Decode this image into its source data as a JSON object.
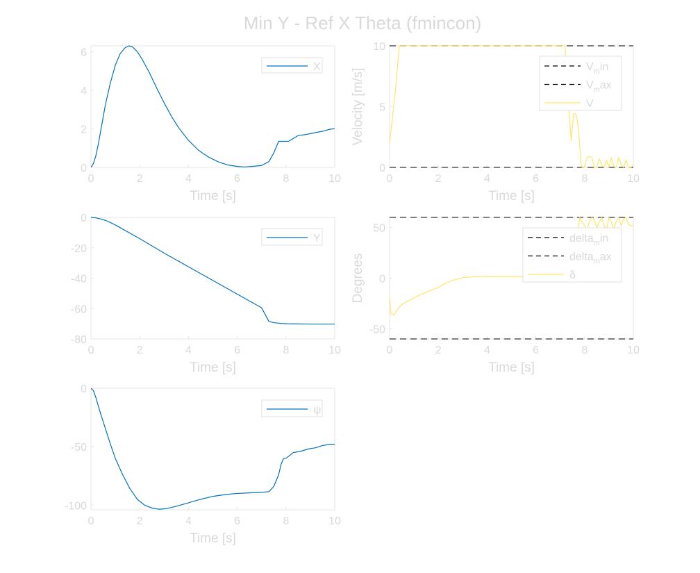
{
  "figure": {
    "title": "Min Y - Ref X Theta (fmincon)"
  },
  "colors": {
    "blue": "#0072BD",
    "yellow": "#FFE766",
    "limit": "#555555"
  },
  "chart_data": [
    {
      "id": "x",
      "type": "line",
      "xlabel": "Time [s]",
      "ylabel": "",
      "xlim": [
        0,
        10
      ],
      "ylim": [
        0,
        6.3
      ],
      "xticks": [
        "0",
        "2",
        "4",
        "6",
        "8",
        "10"
      ],
      "yticks": [
        "0",
        "2",
        "4",
        "6"
      ],
      "legend": [
        "X"
      ],
      "series": [
        {
          "name": "X",
          "color": "#0072BD",
          "x": [
            0,
            0.1,
            0.2,
            0.3,
            0.4,
            0.5,
            0.6,
            0.8,
            1.0,
            1.2,
            1.4,
            1.55,
            1.7,
            1.9,
            2.1,
            2.4,
            2.7,
            3.0,
            3.3,
            3.6,
            4.0,
            4.4,
            4.8,
            5.2,
            5.6,
            6.0,
            6.3,
            6.6,
            7.0,
            7.3,
            7.5,
            7.7,
            7.9,
            8.1,
            8.3,
            8.5,
            8.8,
            9.0,
            9.2,
            9.4,
            9.6,
            9.8,
            10.0
          ],
          "y": [
            0,
            0.2,
            0.6,
            1.2,
            1.9,
            2.6,
            3.3,
            4.4,
            5.3,
            5.9,
            6.2,
            6.3,
            6.25,
            6.0,
            5.6,
            4.9,
            4.1,
            3.35,
            2.65,
            2.05,
            1.4,
            0.9,
            0.55,
            0.3,
            0.13,
            0.05,
            0.02,
            0.05,
            0.1,
            0.3,
            0.75,
            1.35,
            1.35,
            1.35,
            1.5,
            1.65,
            1.7,
            1.75,
            1.8,
            1.85,
            1.9,
            1.98,
            2.0
          ]
        }
      ]
    },
    {
      "id": "velocity",
      "type": "line",
      "xlabel": "Time [s]",
      "ylabel": "Velocity [m/s]",
      "xlim": [
        0,
        10
      ],
      "ylim": [
        0,
        10
      ],
      "xticks": [
        "0",
        "2",
        "4",
        "6",
        "8",
        "10"
      ],
      "yticks": [
        "0",
        "5",
        "10"
      ],
      "legend": [
        {
          "main": "V",
          "sub": "m",
          "rest": "in"
        },
        {
          "main": "V",
          "sub": "m",
          "rest": "ax"
        },
        {
          "main": "V",
          "sub": "",
          "rest": ""
        }
      ],
      "limits": [
        0,
        10
      ],
      "series": [
        {
          "name": "V",
          "color": "#FFE766",
          "x": [
            0,
            0.25,
            0.4,
            0.6,
            1.0,
            2.0,
            3.0,
            4.0,
            5.0,
            6.0,
            7.0,
            7.2,
            7.3,
            7.45,
            7.55,
            7.65,
            7.75,
            7.85,
            7.9,
            8.0,
            8.1,
            8.2,
            8.3,
            8.4,
            8.5,
            8.6,
            8.7,
            8.8,
            8.9,
            9.0,
            9.1,
            9.2,
            9.3,
            9.4,
            9.5,
            9.6,
            9.7,
            9.8,
            9.9,
            10.0
          ],
          "y": [
            2.0,
            6.5,
            10,
            10,
            10,
            10,
            10,
            10,
            10,
            10,
            10,
            10,
            6.5,
            2.2,
            4.4,
            4.4,
            3.2,
            0.4,
            0,
            0,
            0.8,
            0.9,
            0.8,
            0,
            0,
            0.7,
            0.2,
            0,
            0.6,
            0,
            0.8,
            0.1,
            0,
            0.8,
            0.2,
            0,
            0.6,
            0,
            0,
            0.2
          ]
        }
      ]
    },
    {
      "id": "y",
      "type": "line",
      "xlabel": "Time [s]",
      "ylabel": "",
      "xlim": [
        0,
        10
      ],
      "ylim": [
        -80,
        0
      ],
      "xticks": [
        "0",
        "2",
        "4",
        "6",
        "8",
        "10"
      ],
      "yticks": [
        "0",
        "-20",
        "-40",
        "-60",
        "-80"
      ],
      "legend": [
        "Y"
      ],
      "series": [
        {
          "name": "Y",
          "color": "#0072BD",
          "x": [
            0,
            0.2,
            0.4,
            0.6,
            0.8,
            1.0,
            2.0,
            3.0,
            4.0,
            5.0,
            6.0,
            7.0,
            7.3,
            7.5,
            7.8,
            8.0,
            9.0,
            10.0
          ],
          "y": [
            0,
            -0.3,
            -1.0,
            -2.0,
            -3.4,
            -5.0,
            -14.0,
            -23.5,
            -32.5,
            -41.5,
            -50.5,
            -59.5,
            -68.5,
            -69.3,
            -69.8,
            -70.0,
            -70.2,
            -70.2
          ]
        }
      ]
    },
    {
      "id": "delta",
      "type": "line",
      "xlabel": "Time [s]",
      "ylabel": "Degrees",
      "xlim": [
        0,
        10
      ],
      "ylim": [
        -60,
        60
      ],
      "xticks": [
        "0",
        "2",
        "4",
        "6",
        "8",
        "10"
      ],
      "yticks": [
        "50",
        "0",
        "-50"
      ],
      "legend": [
        {
          "main": "delta",
          "sub": "m",
          "rest": "in"
        },
        {
          "main": "delta",
          "sub": "m",
          "rest": "ax"
        },
        {
          "main": "δ",
          "sub": "",
          "rest": ""
        }
      ],
      "limits": [
        -60,
        60
      ],
      "series": [
        {
          "name": "δ",
          "color": "#FFE766",
          "x": [
            0,
            0.05,
            0.2,
            0.35,
            0.5,
            0.8,
            1.2,
            1.6,
            2.0,
            2.3,
            2.6,
            3.0,
            3.5,
            4.0,
            5.0,
            6.0,
            6.5,
            7.0,
            7.5,
            7.7,
            7.8,
            7.9,
            8.0,
            8.1,
            8.2,
            8.3,
            8.4,
            8.5,
            8.6,
            8.7,
            8.8,
            8.9,
            9.0,
            9.1,
            9.2,
            9.3,
            9.4,
            9.5,
            9.6,
            9.7,
            9.8,
            9.9,
            10.0
          ],
          "y": [
            -18,
            -35,
            -36,
            -30,
            -26,
            -22,
            -17,
            -13,
            -9,
            -5,
            -2,
            0.5,
            1.5,
            1.8,
            1.5,
            1.0,
            0.8,
            2,
            10,
            40,
            60,
            55,
            52,
            48,
            56,
            60,
            58,
            50,
            55,
            60,
            52,
            48,
            60,
            55,
            48,
            56,
            60,
            52,
            58,
            60,
            53,
            52,
            52
          ]
        }
      ]
    },
    {
      "id": "psi",
      "type": "line",
      "xlabel": "Time [s]",
      "ylabel": "",
      "xlim": [
        0,
        10
      ],
      "ylim": [
        -104,
        0
      ],
      "xticks": [
        "0",
        "2",
        "4",
        "6",
        "8",
        "10"
      ],
      "yticks": [
        "0",
        "-50",
        "-100"
      ],
      "legend": [
        "ψ"
      ],
      "series": [
        {
          "name": "ψ",
          "color": "#0072BD",
          "x": [
            0,
            0.1,
            0.2,
            0.4,
            0.6,
            0.8,
            1.0,
            1.3,
            1.6,
            1.9,
            2.2,
            2.5,
            2.8,
            3.1,
            3.5,
            4.0,
            4.5,
            5.0,
            5.5,
            6.0,
            6.5,
            7.0,
            7.3,
            7.5,
            7.7,
            7.8,
            7.9,
            8.0,
            8.3,
            8.6,
            8.9,
            9.2,
            9.5,
            9.8,
            10.0
          ],
          "y": [
            0,
            -2,
            -8,
            -22,
            -35,
            -48,
            -60,
            -74,
            -86,
            -95,
            -100,
            -102.5,
            -103.5,
            -103,
            -101,
            -98,
            -95,
            -92.5,
            -91,
            -90,
            -89.5,
            -89,
            -88.5,
            -84,
            -74,
            -65,
            -60,
            -60,
            -55,
            -54,
            -52,
            -51,
            -49,
            -48,
            -48
          ]
        }
      ]
    }
  ]
}
